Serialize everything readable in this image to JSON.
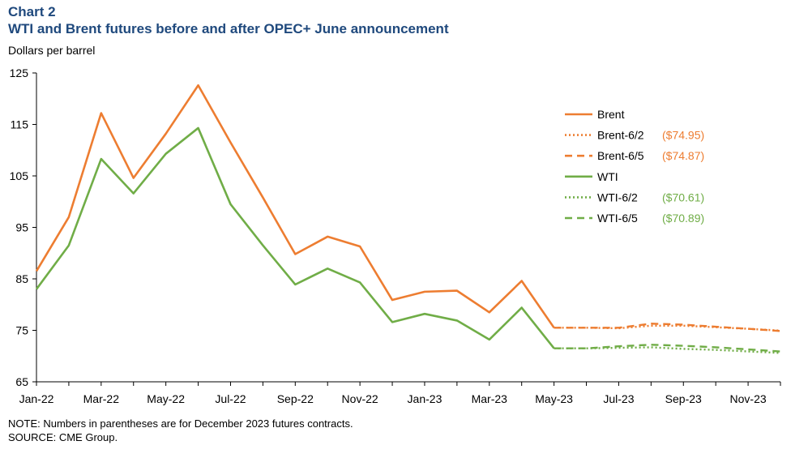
{
  "header": {
    "chart_number": "Chart 2",
    "title": "WTI and Brent futures before and after OPEC+ June announcement",
    "ylabel": "Dollars per barrel"
  },
  "notes": {
    "note": "NOTE: Numbers in parentheses are for December 2023 futures contracts.",
    "source": "SOURCE: CME Group."
  },
  "chart_data": {
    "type": "line",
    "title": "WTI and Brent futures before and after OPEC+ June announcement",
    "ylabel": "Dollars per barrel",
    "xlabel": "",
    "ylim": [
      65,
      125
    ],
    "yticks": [
      65,
      75,
      85,
      95,
      105,
      115,
      125
    ],
    "x_months": [
      "Jan-22",
      "Feb-22",
      "Mar-22",
      "Apr-22",
      "May-22",
      "Jun-22",
      "Jul-22",
      "Aug-22",
      "Sep-22",
      "Oct-22",
      "Nov-22",
      "Dec-22",
      "Jan-23",
      "Feb-23",
      "Mar-23",
      "Apr-23",
      "May-23",
      "Jun-23",
      "Jul-23",
      "Aug-23",
      "Sep-23",
      "Oct-23",
      "Nov-23",
      "Dec-23"
    ],
    "xtick_labels": [
      "Jan-22",
      "Mar-22",
      "May-22",
      "Jul-22",
      "Sep-22",
      "Nov-22",
      "Jan-23",
      "Mar-23",
      "May-23",
      "Jul-23",
      "Sep-23",
      "Nov-23"
    ],
    "grid": false,
    "legend_position": "right",
    "colors": {
      "brent": "#ed7d31",
      "wti": "#70ad47"
    },
    "series": [
      {
        "name": "Brent",
        "group": "brent",
        "style": "solid",
        "label": "",
        "start_index": 0,
        "values": [
          86.5,
          97.0,
          117.2,
          104.6,
          113.2,
          122.6,
          111.5,
          100.8,
          89.8,
          93.2,
          91.3,
          80.9,
          82.5,
          82.7,
          78.5,
          84.6,
          75.5
        ]
      },
      {
        "name": "Brent-6/2",
        "group": "brent",
        "style": "dotted",
        "label": "($74.95)",
        "start_index": 16,
        "values": [
          75.5,
          75.5,
          75.4,
          75.9,
          75.9,
          75.6,
          75.3,
          74.95
        ]
      },
      {
        "name": "Brent-6/5",
        "group": "brent",
        "style": "dashed",
        "label": "($74.87)",
        "start_index": 16,
        "values": [
          75.5,
          75.5,
          75.5,
          76.3,
          76.1,
          75.7,
          75.3,
          74.87
        ]
      },
      {
        "name": "WTI",
        "group": "wti",
        "style": "solid",
        "label": "",
        "start_index": 0,
        "values": [
          83.0,
          91.5,
          108.3,
          101.6,
          109.3,
          114.3,
          99.5,
          91.5,
          83.9,
          87.0,
          84.3,
          76.6,
          78.2,
          76.9,
          73.2,
          79.4,
          71.5
        ]
      },
      {
        "name": "WTI-6/2",
        "group": "wti",
        "style": "dotted",
        "label": "($70.61)",
        "start_index": 16,
        "values": [
          71.5,
          71.5,
          71.6,
          71.7,
          71.4,
          71.2,
          70.9,
          70.61
        ]
      },
      {
        "name": "WTI-6/5",
        "group": "wti",
        "style": "dashed",
        "label": "($70.89)",
        "start_index": 16,
        "values": [
          71.5,
          71.5,
          71.9,
          72.2,
          72.0,
          71.7,
          71.3,
          70.89
        ]
      }
    ]
  }
}
